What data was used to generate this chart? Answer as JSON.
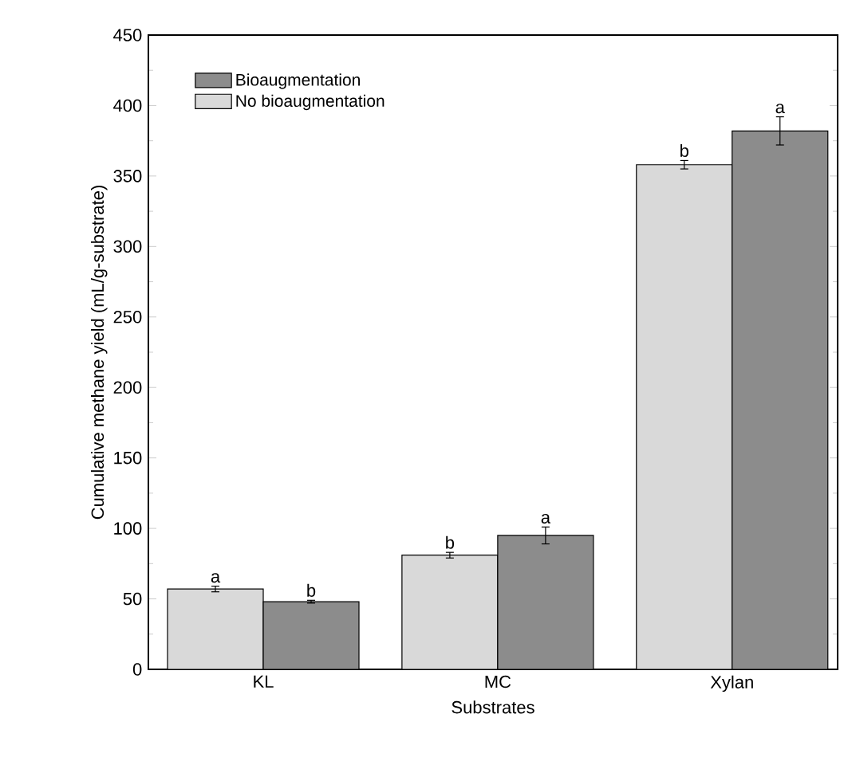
{
  "chart_data": {
    "type": "bar",
    "xlabel": "Substrates",
    "ylabel": "Cumulative methane yield (mL/g-substrate)",
    "categories": [
      "KL",
      "MC",
      "Xylan"
    ],
    "series": [
      {
        "name": "No bioaugmentation",
        "color": "#d9d9d9",
        "values": [
          57,
          81,
          358
        ],
        "errors": [
          2,
          2,
          3
        ],
        "value_labels": [
          "a",
          "b",
          "b"
        ]
      },
      {
        "name": "Bioaugmentation",
        "color": "#8c8c8c",
        "values": [
          48,
          95,
          382
        ],
        "errors": [
          1,
          6,
          10
        ],
        "value_labels": [
          "b",
          "a",
          "a"
        ]
      }
    ],
    "ylim": [
      0,
      450
    ],
    "yticks": [
      0,
      50,
      100,
      150,
      200,
      250,
      300,
      350,
      400,
      450
    ],
    "grid": false,
    "legend": "top left"
  }
}
